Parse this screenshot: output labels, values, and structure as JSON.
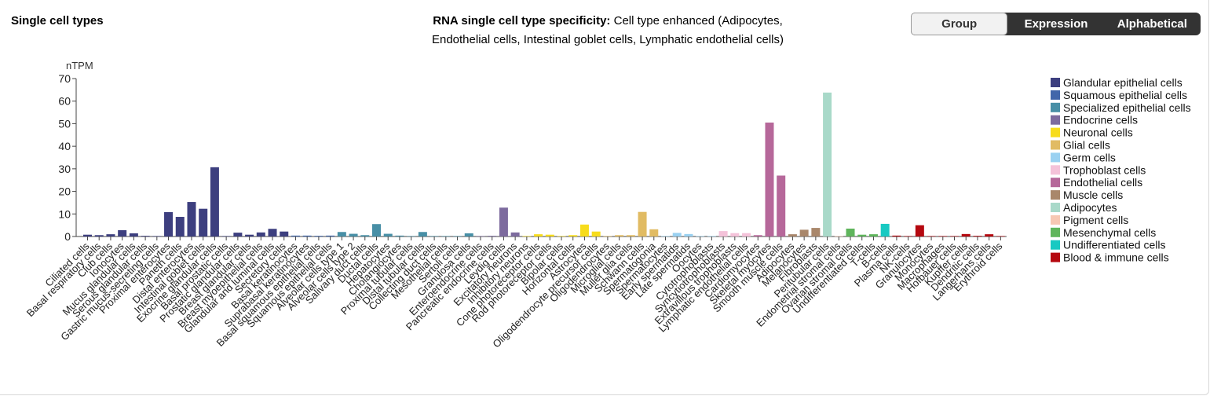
{
  "section_title": "Single cell types",
  "specificity": {
    "label": "RNA single cell type specificity:",
    "line1_value": "Cell type enhanced (Adipocytes,",
    "line2": "Endothelial cells, Intestinal goblet cells, Lymphatic endothelial cells)"
  },
  "view_toggle": {
    "options": [
      "Group",
      "Expression",
      "Alphabetical"
    ],
    "selected": "Group"
  },
  "chart_data": {
    "type": "bar",
    "ylabel": "nTPM",
    "ylim": [
      0,
      70
    ],
    "yticks": [
      0,
      10,
      20,
      30,
      40,
      50,
      60,
      70
    ],
    "legend_position": "right",
    "groups": [
      {
        "name": "Glandular epithelial cells",
        "color": "#3d3f7f"
      },
      {
        "name": "Squamous epithelial cells",
        "color": "#4166aa"
      },
      {
        "name": "Specialized epithelial cells",
        "color": "#488fa6"
      },
      {
        "name": "Endocrine cells",
        "color": "#7d6b9e"
      },
      {
        "name": "Neuronal cells",
        "color": "#f7dc1c"
      },
      {
        "name": "Glial cells",
        "color": "#e1bb63"
      },
      {
        "name": "Germ cells",
        "color": "#9ad1f1"
      },
      {
        "name": "Trophoblast cells",
        "color": "#f4c2d9"
      },
      {
        "name": "Endothelial cells",
        "color": "#b6689a"
      },
      {
        "name": "Muscle cells",
        "color": "#a9876b"
      },
      {
        "name": "Adipocytes",
        "color": "#a9d9c9"
      },
      {
        "name": "Pigment cells",
        "color": "#f7c8b4"
      },
      {
        "name": "Mesenchymal cells",
        "color": "#5fb55c"
      },
      {
        "name": "Undifferentiated cells",
        "color": "#18c9c2"
      },
      {
        "name": "Blood & immune cells",
        "color": "#b5080f"
      }
    ],
    "bars": [
      {
        "name": "Ciliated cells",
        "value": 0.8,
        "group": 0
      },
      {
        "name": "Basal respiratory cells",
        "value": 0.6,
        "group": 0
      },
      {
        "name": "Club cells",
        "value": 1.0,
        "group": 0
      },
      {
        "name": "Ionocytes",
        "value": 2.8,
        "group": 0
      },
      {
        "name": "Mucus glandular cells",
        "value": 1.4,
        "group": 0
      },
      {
        "name": "Serous glandular cells",
        "value": 0.3,
        "group": 0
      },
      {
        "name": "Gastric mucus-secreting cells",
        "value": 0.2,
        "group": 0
      },
      {
        "name": "Proximal enterocytes",
        "value": 10.8,
        "group": 0
      },
      {
        "name": "Paneth cells",
        "value": 8.7,
        "group": 0
      },
      {
        "name": "Distal enterocytes",
        "value": 15.3,
        "group": 0
      },
      {
        "name": "Intestinal goblet cells",
        "value": 12.3,
        "group": 0
      },
      {
        "name": "Exocrine glandular cells",
        "value": 30.7,
        "group": 0
      },
      {
        "name": "Basal prostatic cells",
        "value": 0.2,
        "group": 0
      },
      {
        "name": "Prostatic glandular cells",
        "value": 1.7,
        "group": 0
      },
      {
        "name": "Breast glandular cells",
        "value": 0.8,
        "group": 0
      },
      {
        "name": "Breast myoepithelial cells",
        "value": 1.8,
        "group": 0
      },
      {
        "name": "Glandular and luminal cells",
        "value": 3.4,
        "group": 0
      },
      {
        "name": "Secretory cells",
        "value": 2.2,
        "group": 0
      },
      {
        "name": "Basal keratinocytes",
        "value": 0.4,
        "group": 1
      },
      {
        "name": "Suprabasal keratinocytes",
        "value": 0.4,
        "group": 1
      },
      {
        "name": "Basal squamous epithelial cells",
        "value": 0.3,
        "group": 1
      },
      {
        "name": "Squamous epithelial cells",
        "value": 0.4,
        "group": 1
      },
      {
        "name": "Alveolar cells type 1",
        "value": 2.0,
        "group": 2
      },
      {
        "name": "Alveolar cells type 2",
        "value": 1.2,
        "group": 2
      },
      {
        "name": "Salivary duct cells",
        "value": 0.6,
        "group": 2
      },
      {
        "name": "Ductal cells",
        "value": 5.5,
        "group": 2
      },
      {
        "name": "Hepatocytes",
        "value": 1.2,
        "group": 2
      },
      {
        "name": "Cholangiocytes",
        "value": 0.4,
        "group": 2
      },
      {
        "name": "Proximal tubular cells",
        "value": 0.2,
        "group": 2
      },
      {
        "name": "Distal tubular cells",
        "value": 2.0,
        "group": 2
      },
      {
        "name": "Collecting duct cells",
        "value": 0.2,
        "group": 2
      },
      {
        "name": "Mesothelial cells",
        "value": 0.2,
        "group": 2
      },
      {
        "name": "Sertoli cells",
        "value": 0.2,
        "group": 2
      },
      {
        "name": "Granulosa cells",
        "value": 1.4,
        "group": 2
      },
      {
        "name": "Enteroendocrine cells",
        "value": 0.2,
        "group": 3
      },
      {
        "name": "Pancreatic endocrine cells",
        "value": 0.3,
        "group": 3
      },
      {
        "name": "Leydig cells",
        "value": 12.8,
        "group": 3
      },
      {
        "name": "Excitatory neurons",
        "value": 1.8,
        "group": 3
      },
      {
        "name": "Inhibitory neurons",
        "value": 0.2,
        "group": 4
      },
      {
        "name": "Cone photoreceptor cells",
        "value": 1.0,
        "group": 4
      },
      {
        "name": "Rod photoreceptor cells",
        "value": 0.8,
        "group": 4
      },
      {
        "name": "Bipolar cells",
        "value": 0.2,
        "group": 4
      },
      {
        "name": "Horizontal cells",
        "value": 0.6,
        "group": 4
      },
      {
        "name": "Astrocytes",
        "value": 5.3,
        "group": 4
      },
      {
        "name": "Oligodendrocyte precursor cells",
        "value": 2.2,
        "group": 4
      },
      {
        "name": "Oligodendrocytes",
        "value": 0.2,
        "group": 5
      },
      {
        "name": "Microglial cells",
        "value": 0.6,
        "group": 5
      },
      {
        "name": "Muller glia cells",
        "value": 0.6,
        "group": 5
      },
      {
        "name": "Schwann cells",
        "value": 10.9,
        "group": 5
      },
      {
        "name": "Spermatogonia",
        "value": 3.2,
        "group": 5
      },
      {
        "name": "Spermatocytes",
        "value": 0.2,
        "group": 6
      },
      {
        "name": "Early spermatids",
        "value": 1.6,
        "group": 6
      },
      {
        "name": "Late spermatids",
        "value": 1.1,
        "group": 6
      },
      {
        "name": "Oocytes",
        "value": 0.2,
        "group": 6
      },
      {
        "name": "Cytotrophoblasts",
        "value": 0.2,
        "group": 6
      },
      {
        "name": "Syncytiotrophoblasts",
        "value": 2.4,
        "group": 7
      },
      {
        "name": "Extravillous trophoblasts",
        "value": 1.5,
        "group": 7
      },
      {
        "name": "Lymphatic endothelial cells",
        "value": 1.5,
        "group": 7
      },
      {
        "name": "Cardiomyocytes",
        "value": 0.6,
        "group": 8
      },
      {
        "name": "Skeletal myocytes",
        "value": 50.5,
        "group": 8
      },
      {
        "name": "Smooth muscle cells",
        "value": 27.0,
        "group": 8
      },
      {
        "name": "Adipocytes",
        "value": 1.0,
        "group": 9
      },
      {
        "name": "Melanocytes",
        "value": 3.0,
        "group": 9
      },
      {
        "name": "Fibroblasts",
        "value": 3.8,
        "group": 9
      },
      {
        "name": "Peritubular cells",
        "value": 63.8,
        "group": 10
      },
      {
        "name": "Endometrial stromal cells",
        "value": 0.2,
        "group": 11
      },
      {
        "name": "Ovarian stromal cells",
        "value": 3.5,
        "group": 12
      },
      {
        "name": "Undifferentiated cells",
        "value": 0.8,
        "group": 12
      },
      {
        "name": "T-cells",
        "value": 1.0,
        "group": 12
      },
      {
        "name": "B-cells",
        "value": 5.6,
        "group": 13
      },
      {
        "name": "Plasma cells",
        "value": 0.4,
        "group": 14
      },
      {
        "name": "NK-cells",
        "value": 0.2,
        "group": 14
      },
      {
        "name": "Granulocytes",
        "value": 5.0,
        "group": 14
      },
      {
        "name": "Monocytes",
        "value": 0.2,
        "group": 14
      },
      {
        "name": "Macrophages",
        "value": 0.2,
        "group": 14
      },
      {
        "name": "Hofbauer cells",
        "value": 0.2,
        "group": 14
      },
      {
        "name": "Kupffer cells",
        "value": 1.1,
        "group": 14
      },
      {
        "name": "Dendritic cells",
        "value": 0.3,
        "group": 14
      },
      {
        "name": "Langerhans cells",
        "value": 1.0,
        "group": 14
      },
      {
        "name": "Erythroid cells",
        "value": 0.2,
        "group": 14
      }
    ]
  }
}
